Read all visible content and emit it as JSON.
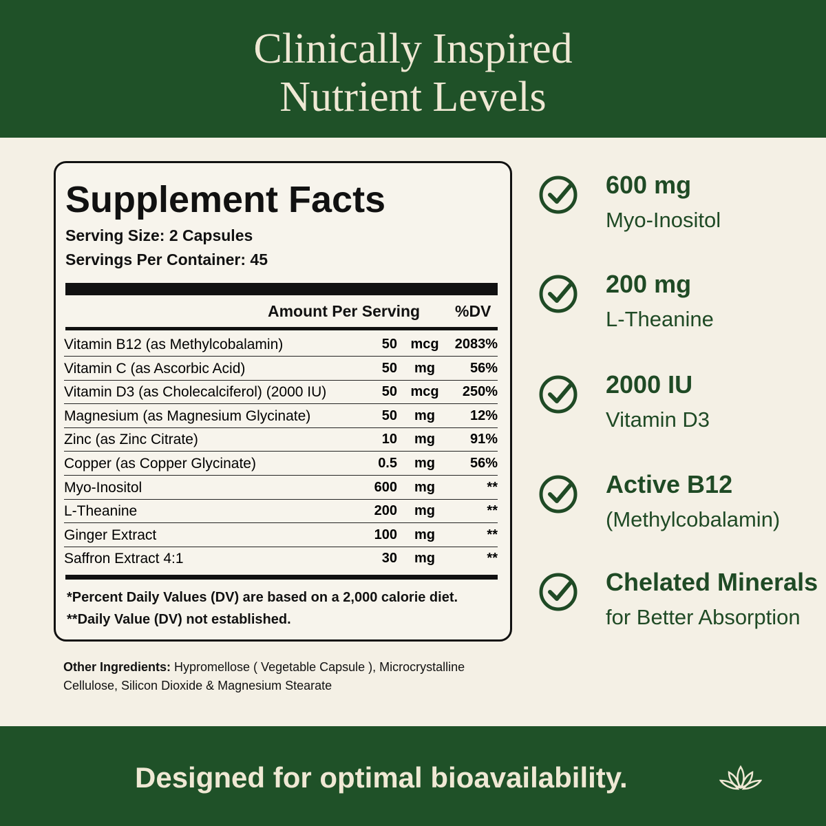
{
  "header": {
    "title_lines": [
      "Clinically Inspired",
      "Nutrient Levels"
    ]
  },
  "facts": {
    "title": "Supplement Facts",
    "serving_size": "Serving Size: 2 Capsules",
    "servings_per_container": "Servings Per Container: 45",
    "column_amount": "Amount Per Serving",
    "column_dv": "%DV",
    "rows": [
      [
        "Vitamin B12 (as Methylcobalamin)",
        "50",
        "mcg",
        "2083%"
      ],
      [
        "Vitamin C (as Ascorbic Acid)",
        "50",
        "mg",
        "56%"
      ],
      [
        "Vitamin D3 (as Cholecalciferol) (2000 IU)",
        "50",
        "mcg",
        "250%"
      ],
      [
        "Magnesium (as Magnesium Glycinate)",
        "50",
        "mg",
        "12%"
      ],
      [
        "Zinc (as Zinc Citrate)",
        "10",
        "mg",
        "91%"
      ],
      [
        "Copper (as Copper Glycinate)",
        "0.5",
        "mg",
        "56%"
      ],
      [
        "Myo-Inositol",
        "600",
        "mg",
        "**"
      ],
      [
        "L-Theanine",
        "200",
        "mg",
        "**"
      ],
      [
        "Ginger Extract",
        "100",
        "mg",
        "**"
      ],
      [
        "Saffron Extract 4:1",
        "30",
        "mg",
        "**"
      ]
    ],
    "footnotes": [
      "*Percent Daily Values (DV) are based on a 2,000 calorie diet.",
      "**Daily Value (DV) not established."
    ]
  },
  "other_ingredients": {
    "label": "Other Ingredients:",
    "text": " Hypromellose ( Vegetable Capsule ), Microcrystalline Cellulose, Silicon Dioxide & Magnesium Stearate"
  },
  "highlights": [
    {
      "value": "600 mg",
      "label": "Myo-Inositol"
    },
    {
      "value": "200 mg",
      "label": "L-Theanine"
    },
    {
      "value": "2000 IU",
      "label": "Vitamin D3"
    },
    {
      "value": "Active B12",
      "label": "(Methylcobalamin)"
    },
    {
      "value": "Chelated Minerals",
      "label": "for Better Absorption"
    }
  ],
  "footer": {
    "text": "Designed for optimal bioavailability."
  }
}
